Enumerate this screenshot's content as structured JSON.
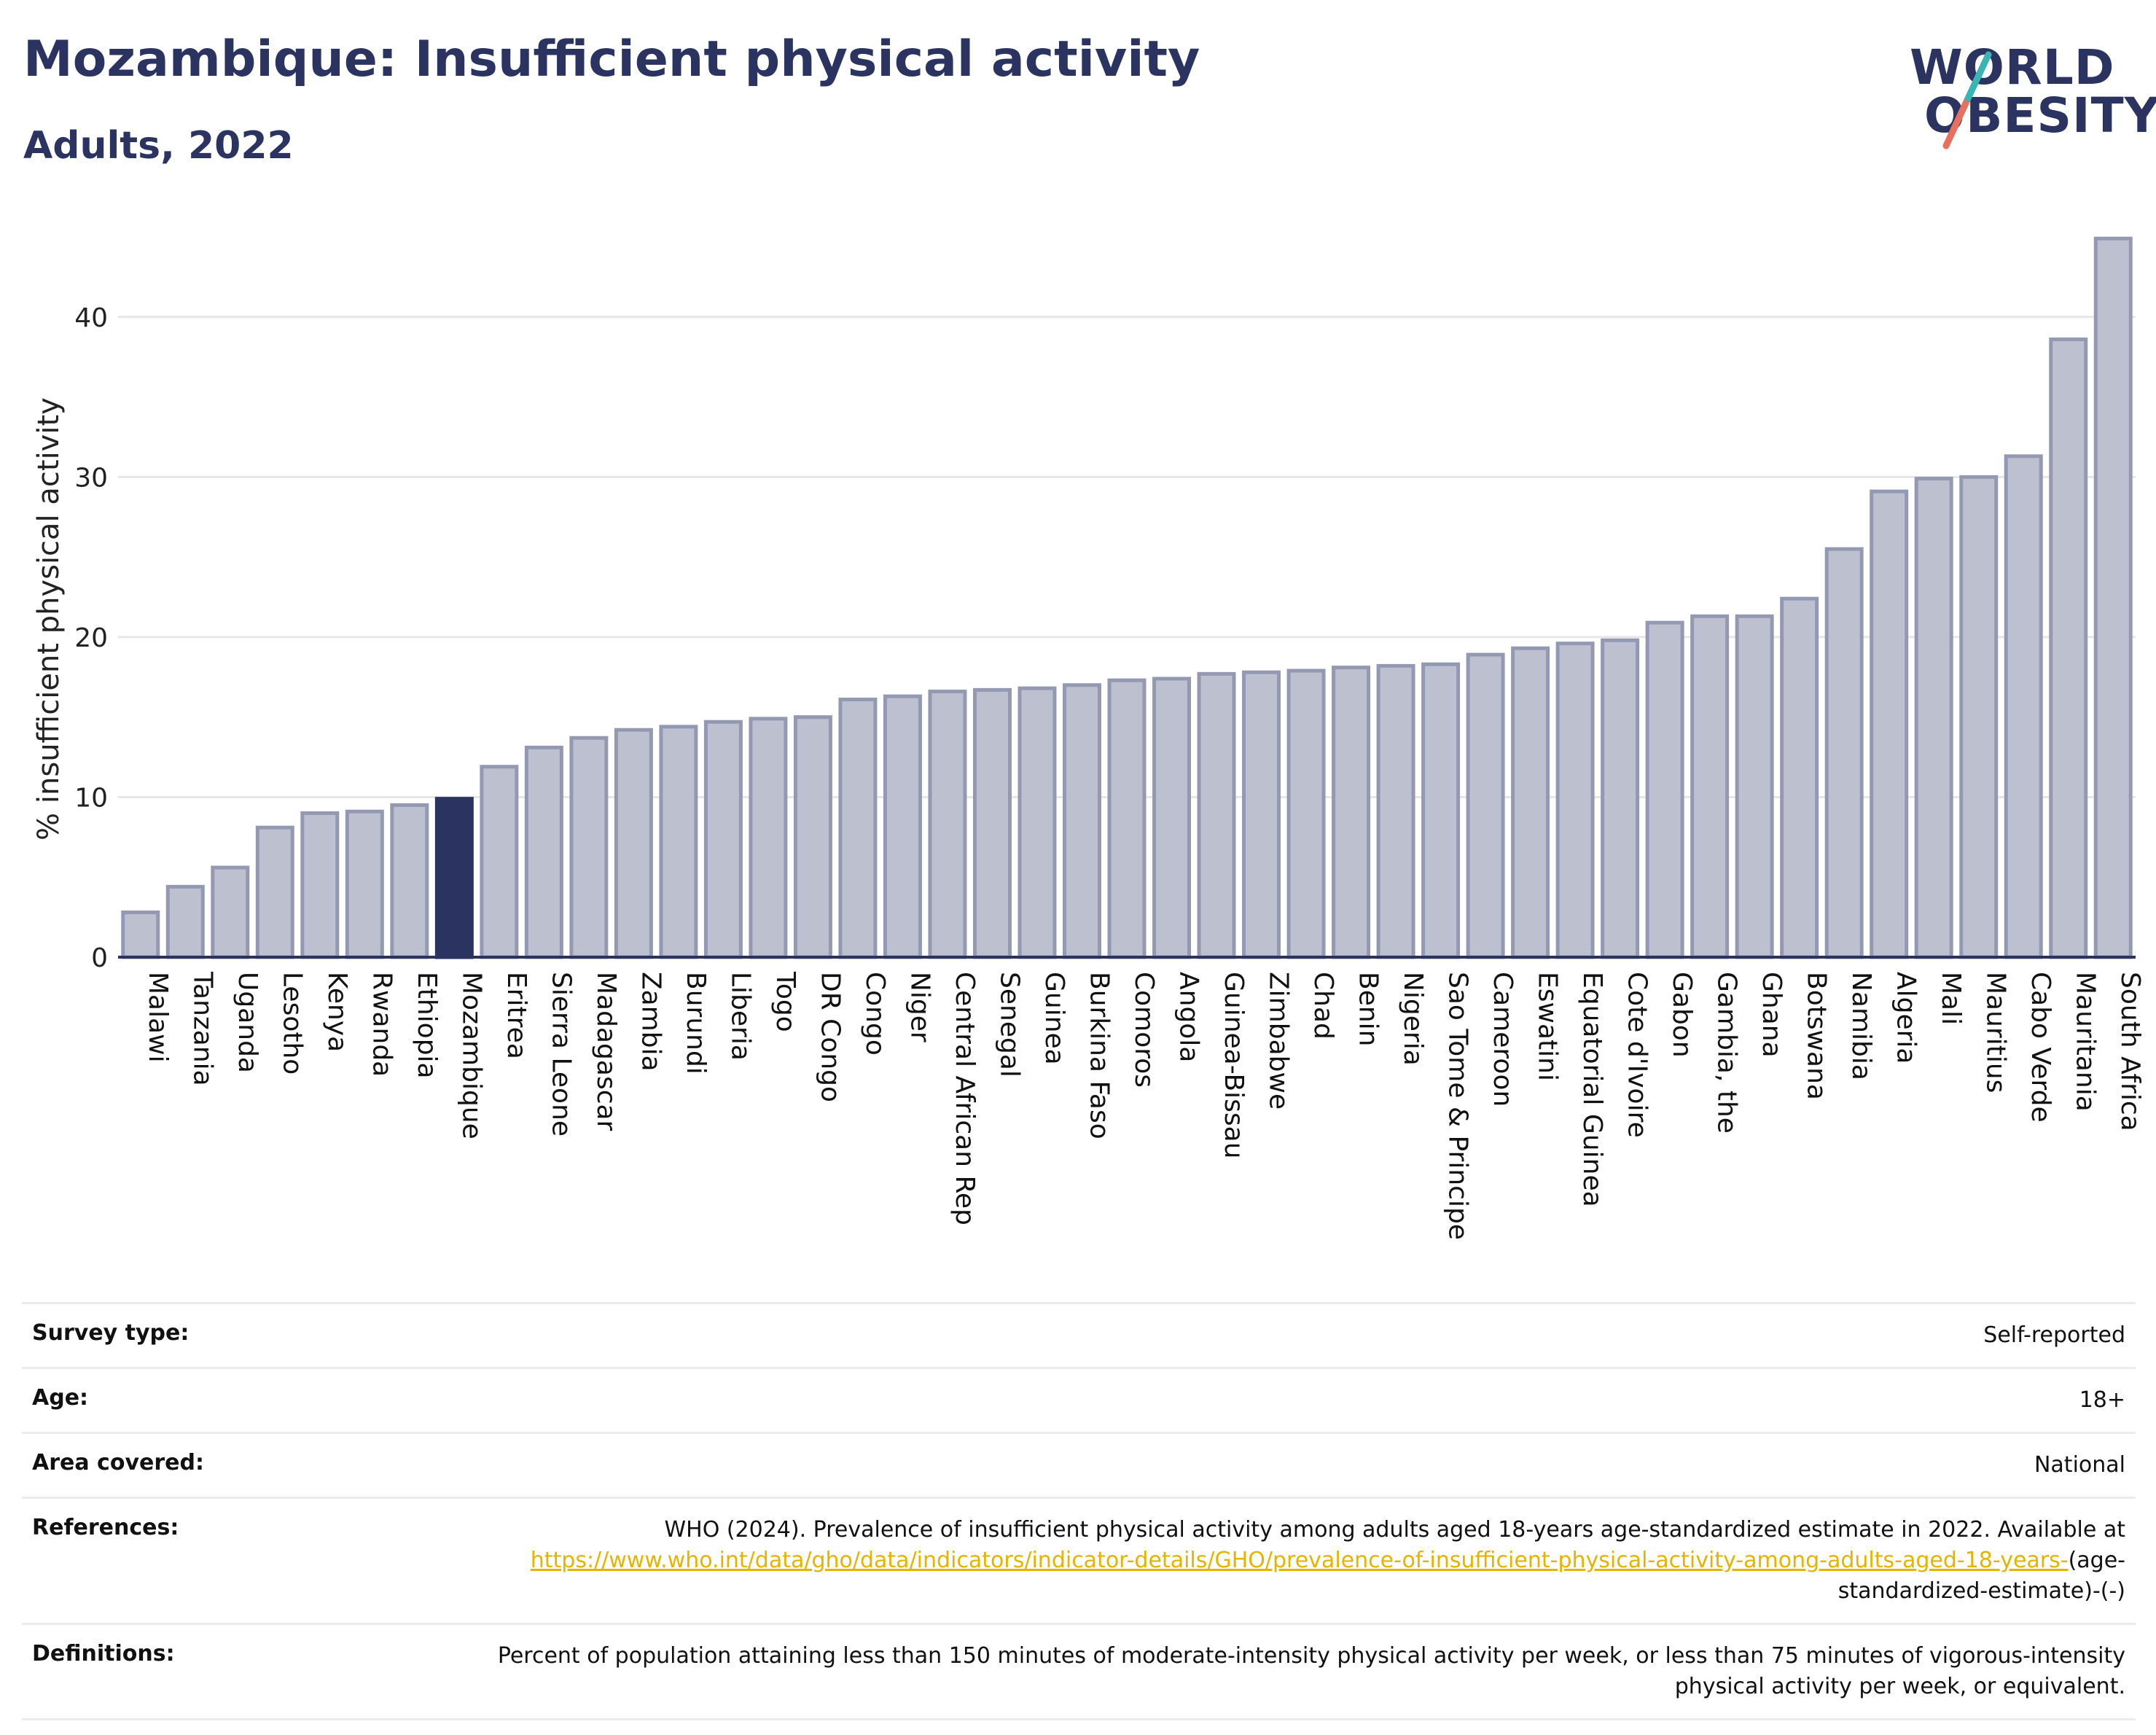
{
  "header": {
    "title": "Mozambique: Insufficient physical activity",
    "subtitle": "Adults, 2022"
  },
  "logo": {
    "line1": "WORLD",
    "line2": "OBESITY",
    "colors": [
      "#2b3461",
      "#e8705f",
      "#3bb4b4"
    ]
  },
  "chart_data": {
    "type": "bar",
    "ylabel": "% insufficient physical activity",
    "ylim": [
      0,
      45
    ],
    "yticks": [
      0,
      10,
      20,
      30,
      40
    ],
    "grid": true,
    "highlight": "Mozambique",
    "colors": {
      "bar": "#bcc0cf",
      "bar_border": "#9499b3",
      "highlight": "#2b3461",
      "grid": "#e6e6e6"
    },
    "categories": [
      "Malawi",
      "Tanzania",
      "Uganda",
      "Lesotho",
      "Kenya",
      "Rwanda",
      "Ethiopia",
      "Mozambique",
      "Eritrea",
      "Sierra Leone",
      "Madagascar",
      "Zambia",
      "Burundi",
      "Liberia",
      "Togo",
      "DR Congo",
      "Congo",
      "Niger",
      "Central African Rep",
      "Senegal",
      "Guinea",
      "Burkina Faso",
      "Comoros",
      "Angola",
      "Guinea-Bissau",
      "Zimbabwe",
      "Chad",
      "Benin",
      "Nigeria",
      "Sao Tome & Principe",
      "Cameroon",
      "Eswatini",
      "Equatorial Guinea",
      "Cote d'Ivoire",
      "Gabon",
      "Gambia, the",
      "Ghana",
      "Botswana",
      "Namibia",
      "Algeria",
      "Mali",
      "Mauritius",
      "Cabo Verde",
      "Mauritania",
      "South Africa"
    ],
    "values": [
      2.8,
      4.4,
      5.6,
      8.1,
      9.0,
      9.1,
      9.5,
      9.9,
      11.9,
      13.1,
      13.7,
      14.2,
      14.4,
      14.7,
      14.9,
      15.0,
      16.1,
      16.3,
      16.6,
      16.7,
      16.8,
      17.0,
      17.3,
      17.4,
      17.7,
      17.8,
      17.9,
      18.1,
      18.2,
      18.3,
      18.9,
      19.3,
      19.6,
      19.8,
      20.9,
      21.3,
      21.3,
      22.4,
      25.5,
      29.1,
      29.9,
      30.0,
      31.3,
      38.6,
      44.9
    ]
  },
  "info": {
    "survey_type_label": "Survey type:",
    "survey_type": "Self-reported",
    "age_label": "Age:",
    "age": "18+",
    "area_label": "Area covered:",
    "area": "National",
    "references_label": "References:",
    "references_text": "WHO (2024). Prevalence of insufficient physical activity among adults aged 18-years age-standardized estimate in 2022. Available at",
    "references_link": "https://www.who.int/data/gho/data/indicators/indicator-details/GHO/prevalence-of-insufficient-physical-activity-among-adults-aged-18-years-",
    "references_suffix": "(age-standardized-estimate)-(-)",
    "definitions_label": "Definitions:",
    "definitions": "Percent of population attaining less than 150 minutes of moderate-intensity physical activity per week, or less than 75 minutes of vigorous-intensity physical activity per week, or equivalent."
  }
}
